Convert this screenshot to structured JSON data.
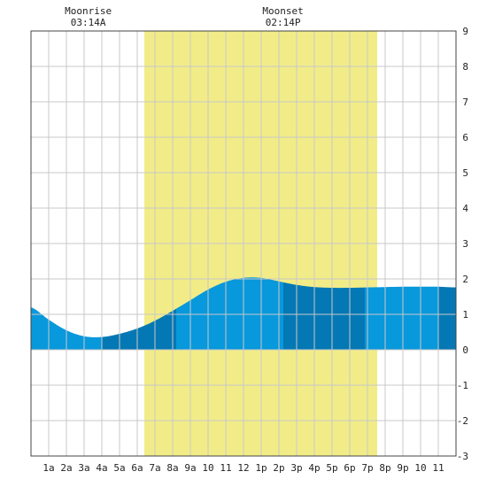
{
  "chart_data": {
    "type": "area",
    "title": "",
    "xlabel": "",
    "ylabel": "",
    "x_tick_labels": [
      "1a",
      "2a",
      "3a",
      "4a",
      "5a",
      "6a",
      "7a",
      "8a",
      "9a",
      "10",
      "11",
      "12",
      "1p",
      "2p",
      "3p",
      "4p",
      "5p",
      "6p",
      "7p",
      "8p",
      "9p",
      "10",
      "11"
    ],
    "ylim": [
      -3,
      9
    ],
    "y_ticks": [
      -3,
      -2,
      -1,
      0,
      1,
      2,
      3,
      4,
      5,
      6,
      7,
      8,
      9
    ],
    "grid": true,
    "daylight_band_hours": [
      6.4,
      19.55
    ],
    "tide_hours": [
      0,
      1,
      2,
      3,
      4,
      5,
      6,
      7,
      8,
      9,
      10,
      11,
      12,
      13,
      14,
      15,
      16,
      17,
      18,
      19,
      20,
      21,
      22,
      23,
      24
    ],
    "tide_heights": [
      1.2,
      0.85,
      0.55,
      0.38,
      0.36,
      0.45,
      0.6,
      0.82,
      1.1,
      1.4,
      1.7,
      1.92,
      2.03,
      2.03,
      1.93,
      1.83,
      1.77,
      1.75,
      1.75,
      1.76,
      1.77,
      1.78,
      1.78,
      1.78,
      1.76
    ],
    "tide_segment_hours": [
      0,
      4.0,
      8.2,
      14.25,
      18.85,
      23.0,
      24
    ],
    "colors": {
      "tide_light": "#0898dc",
      "tide_dark": "#0478b4",
      "daylight": "#f2ec88",
      "grid": "#c8c8c8",
      "border": "#444444"
    },
    "annotations": [
      {
        "title": "Moonrise",
        "time": "03:14A",
        "hour": 3.23
      },
      {
        "title": "Moonset",
        "time": "02:14P",
        "hour": 14.23
      }
    ]
  }
}
